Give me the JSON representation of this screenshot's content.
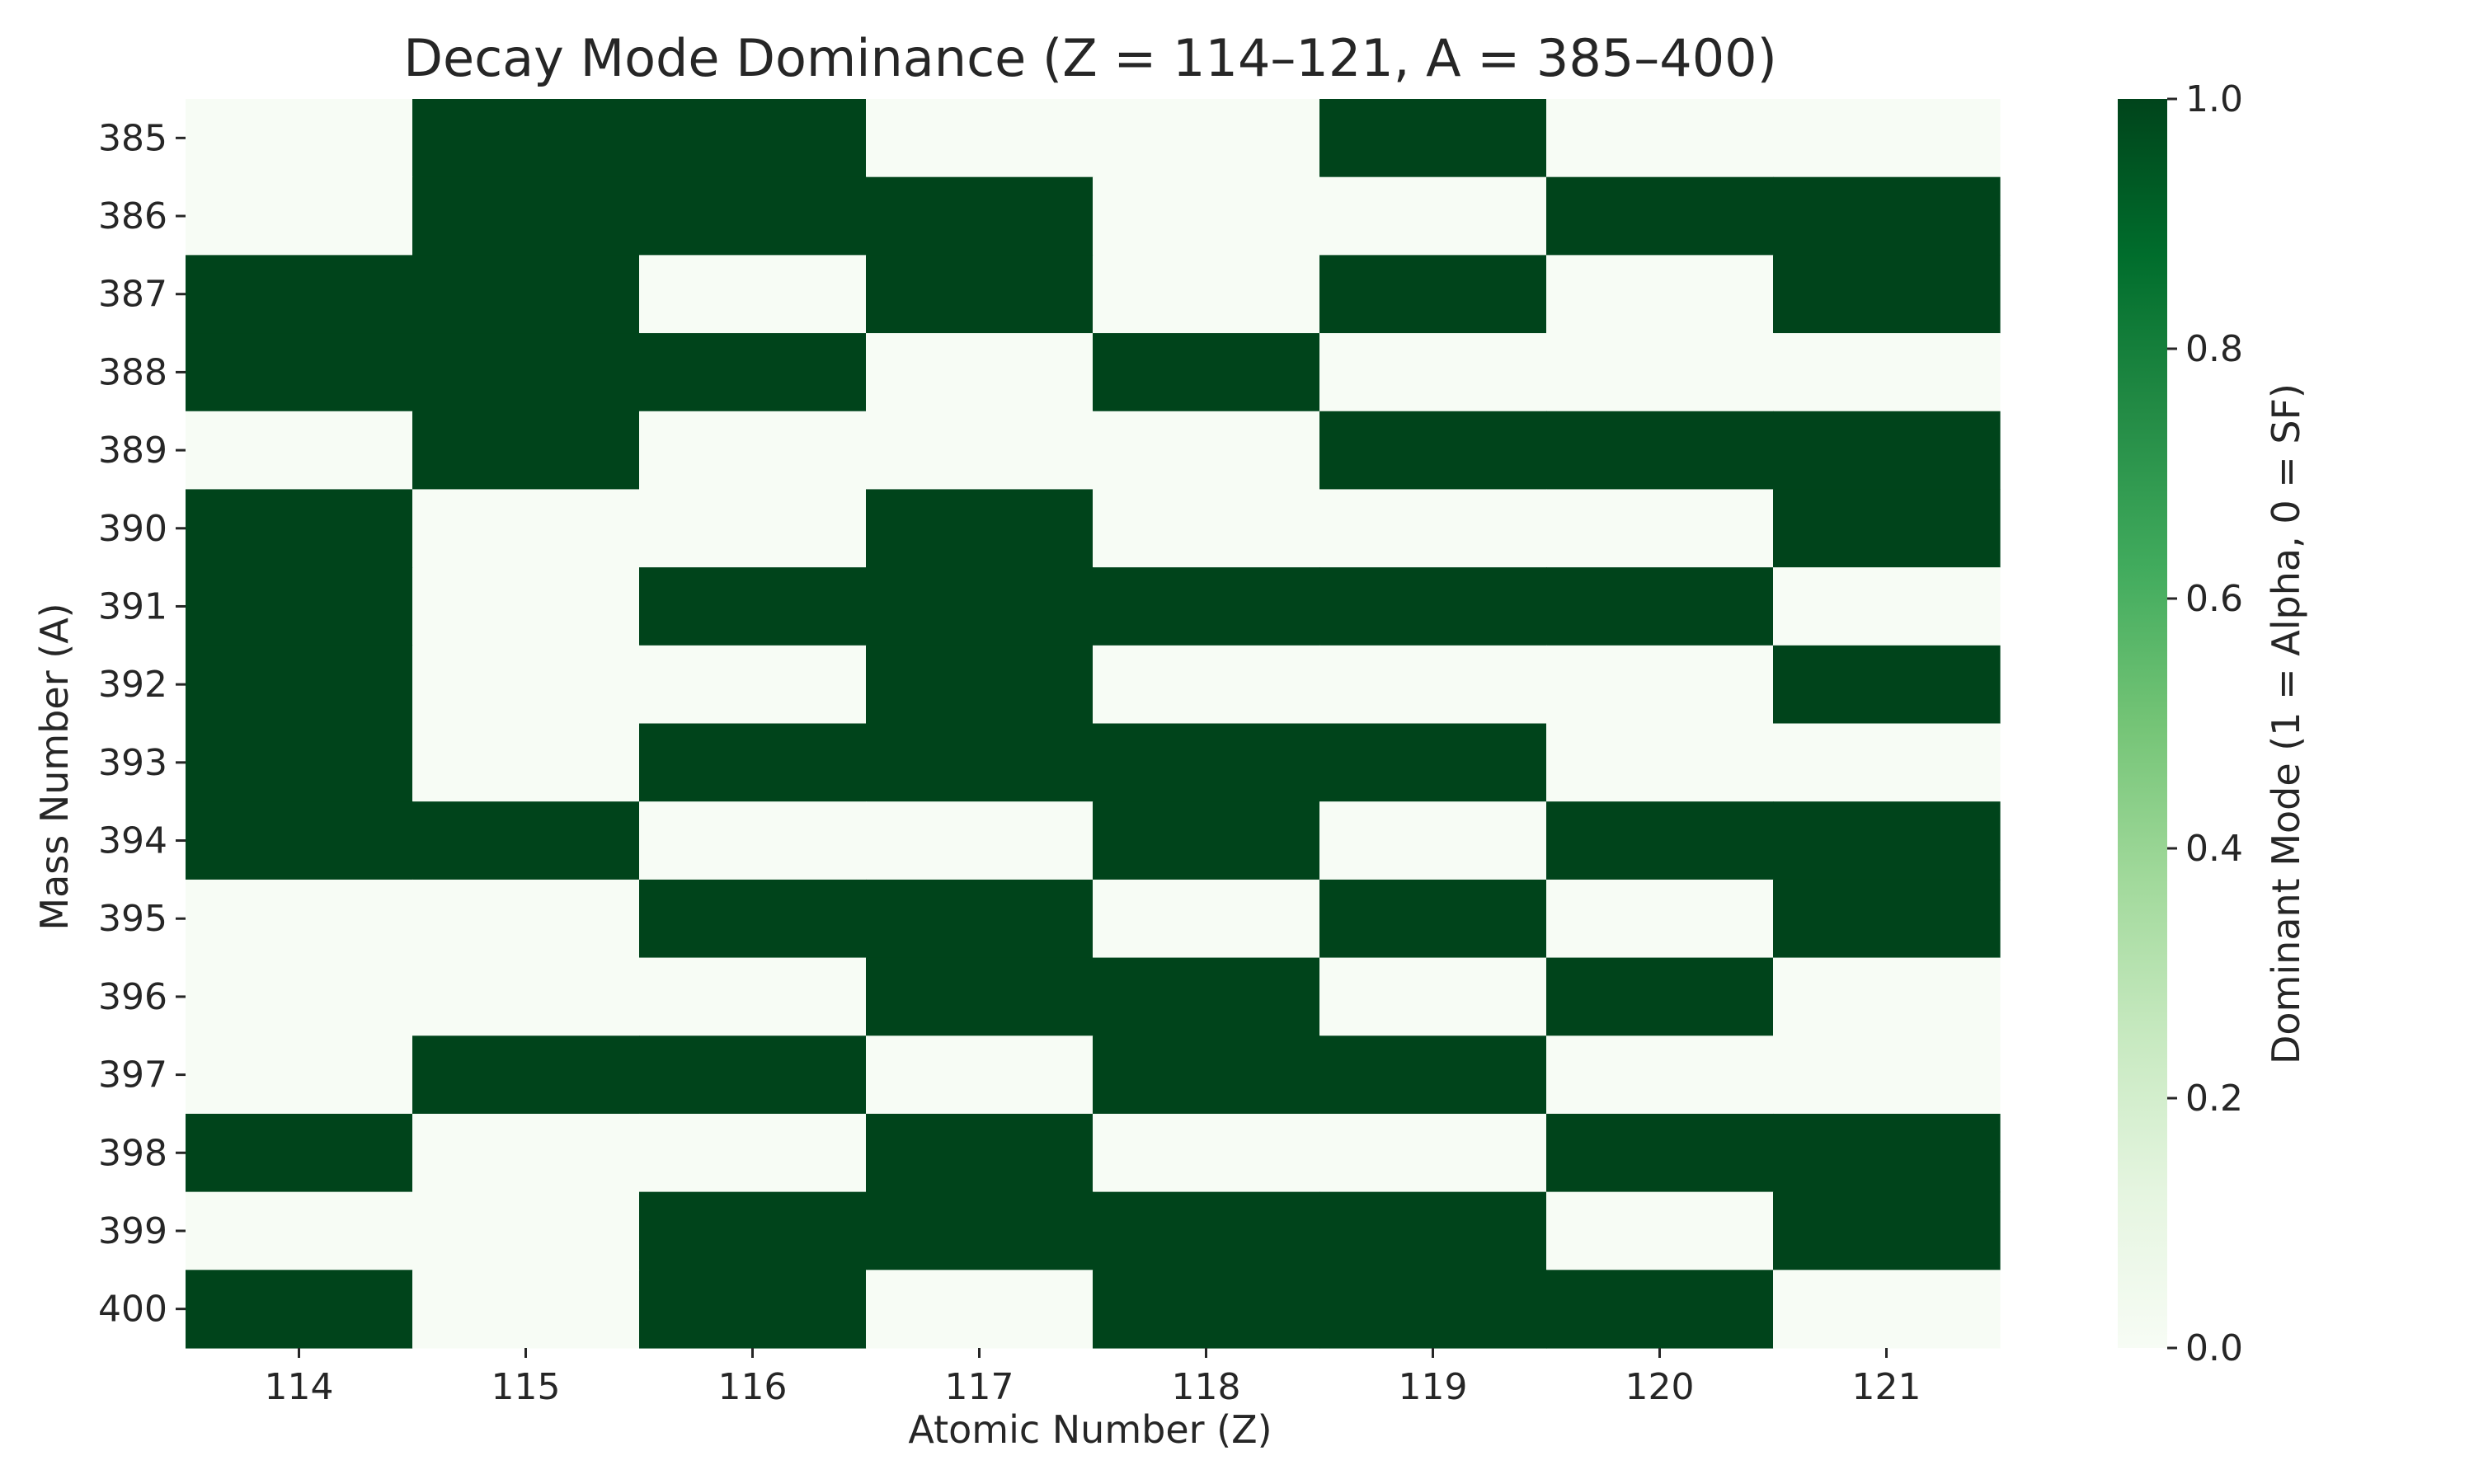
{
  "chart_data": {
    "type": "heatmap",
    "title": "Decay Mode Dominance (Z = 114–121, A = 385–400)",
    "xlabel": "Atomic Number (Z)",
    "ylabel": "Mass Number (A)",
    "x": [
      "114",
      "115",
      "116",
      "117",
      "118",
      "119",
      "120",
      "121"
    ],
    "y": [
      "385",
      "386",
      "387",
      "388",
      "389",
      "390",
      "391",
      "392",
      "393",
      "394",
      "395",
      "396",
      "397",
      "398",
      "399",
      "400"
    ],
    "values": [
      [
        0,
        1,
        1,
        0,
        0,
        1,
        0,
        0
      ],
      [
        0,
        1,
        1,
        1,
        0,
        0,
        1,
        1
      ],
      [
        1,
        1,
        0,
        1,
        0,
        1,
        0,
        1
      ],
      [
        1,
        1,
        1,
        0,
        1,
        0,
        0,
        0
      ],
      [
        0,
        1,
        0,
        0,
        0,
        1,
        1,
        1
      ],
      [
        1,
        0,
        0,
        1,
        0,
        0,
        0,
        1
      ],
      [
        1,
        0,
        1,
        1,
        1,
        1,
        1,
        0
      ],
      [
        1,
        0,
        0,
        1,
        0,
        0,
        0,
        1
      ],
      [
        1,
        0,
        1,
        1,
        1,
        1,
        0,
        0
      ],
      [
        1,
        1,
        0,
        0,
        1,
        0,
        1,
        1
      ],
      [
        0,
        0,
        1,
        1,
        0,
        1,
        0,
        1
      ],
      [
        0,
        0,
        0,
        1,
        1,
        0,
        1,
        0
      ],
      [
        0,
        1,
        1,
        0,
        1,
        1,
        0,
        0
      ],
      [
        1,
        0,
        0,
        1,
        0,
        0,
        1,
        1
      ],
      [
        0,
        0,
        1,
        1,
        1,
        1,
        0,
        1
      ],
      [
        1,
        0,
        1,
        0,
        1,
        1,
        1,
        0
      ]
    ],
    "colorbar": {
      "label": "Dominant Mode (1 = Alpha, 0 = SF)",
      "range": [
        0,
        1
      ],
      "ticks": [
        "0.0",
        "0.2",
        "0.4",
        "0.6",
        "0.8",
        "1.0"
      ],
      "colormap": "Greens",
      "low_color": "#f7fcf5",
      "high_color": "#00441b"
    },
    "grid": false,
    "legend": "colorbar-right"
  }
}
